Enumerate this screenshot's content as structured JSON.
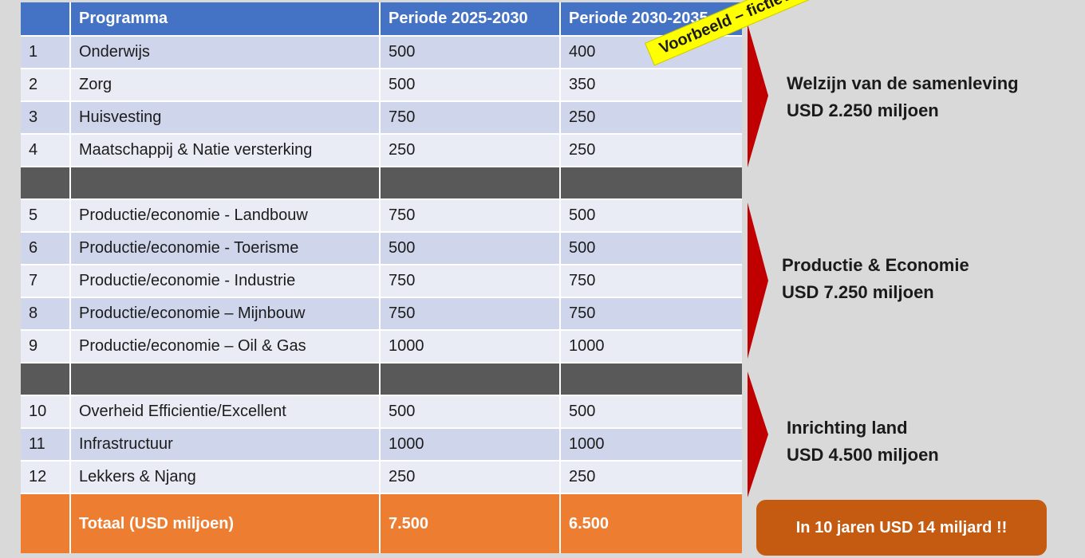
{
  "table": {
    "headers": [
      "",
      "Programma",
      "Periode 2025-2030",
      "Periode 2030-2035"
    ],
    "rows": [
      {
        "num": "1",
        "programma": "Onderwijs",
        "p1": "500",
        "p2": "400"
      },
      {
        "num": "2",
        "programma": "Zorg",
        "p1": "500",
        "p2": "350"
      },
      {
        "num": "3",
        "programma": "Huisvesting",
        "p1": "750",
        "p2": "250"
      },
      {
        "num": "4",
        "programma": "Maatschappij & Natie versterking",
        "p1": "250",
        "p2": "250"
      },
      {
        "num": "5",
        "programma": "Productie/economie - Landbouw",
        "p1": "750",
        "p2": "500"
      },
      {
        "num": "6",
        "programma": "Productie/economie - Toerisme",
        "p1": "500",
        "p2": "500"
      },
      {
        "num": "7",
        "programma": "Productie/economie - Industrie",
        "p1": "750",
        "p2": "750"
      },
      {
        "num": "8",
        "programma": "Productie/economie – Mijnbouw",
        "p1": "750",
        "p2": "750"
      },
      {
        "num": "9",
        "programma": "Productie/economie – Oil & Gas",
        "p1": "1000",
        "p2": "1000"
      },
      {
        "num": "10",
        "programma": "Overheid Efficientie/Excellent",
        "p1": "500",
        "p2": "500"
      },
      {
        "num": "11",
        "programma": "Infrastructuur",
        "p1": "1000",
        "p2": "1000"
      },
      {
        "num": "12",
        "programma": "Lekkers & Njang",
        "p1": "250",
        "p2": "250"
      }
    ],
    "total": {
      "label": "Totaal (USD miljoen)",
      "p1": "7.500",
      "p2": "6.500"
    }
  },
  "groups": [
    {
      "line1": "Welzijn van de samenleving",
      "line2": "USD 2.250 miljoen"
    },
    {
      "line1": "Productie & Economie",
      "line2": "USD 7.250 miljoen"
    },
    {
      "line1": "Inrichting land",
      "line2": "USD 4.500 miljoen"
    }
  ],
  "sticker": "Voorbeeld – fictieve bedragen",
  "callout": "In 10 jaren USD 14 miljard !!",
  "colors": {
    "header": "#4472c4",
    "row_dark": "#cfd5ea",
    "row_light": "#e9ebf5",
    "separator": "#595959",
    "total": "#ed7d31",
    "arrow": "#c00000",
    "sticker": "#ffff00",
    "callout": "#c55a11"
  }
}
